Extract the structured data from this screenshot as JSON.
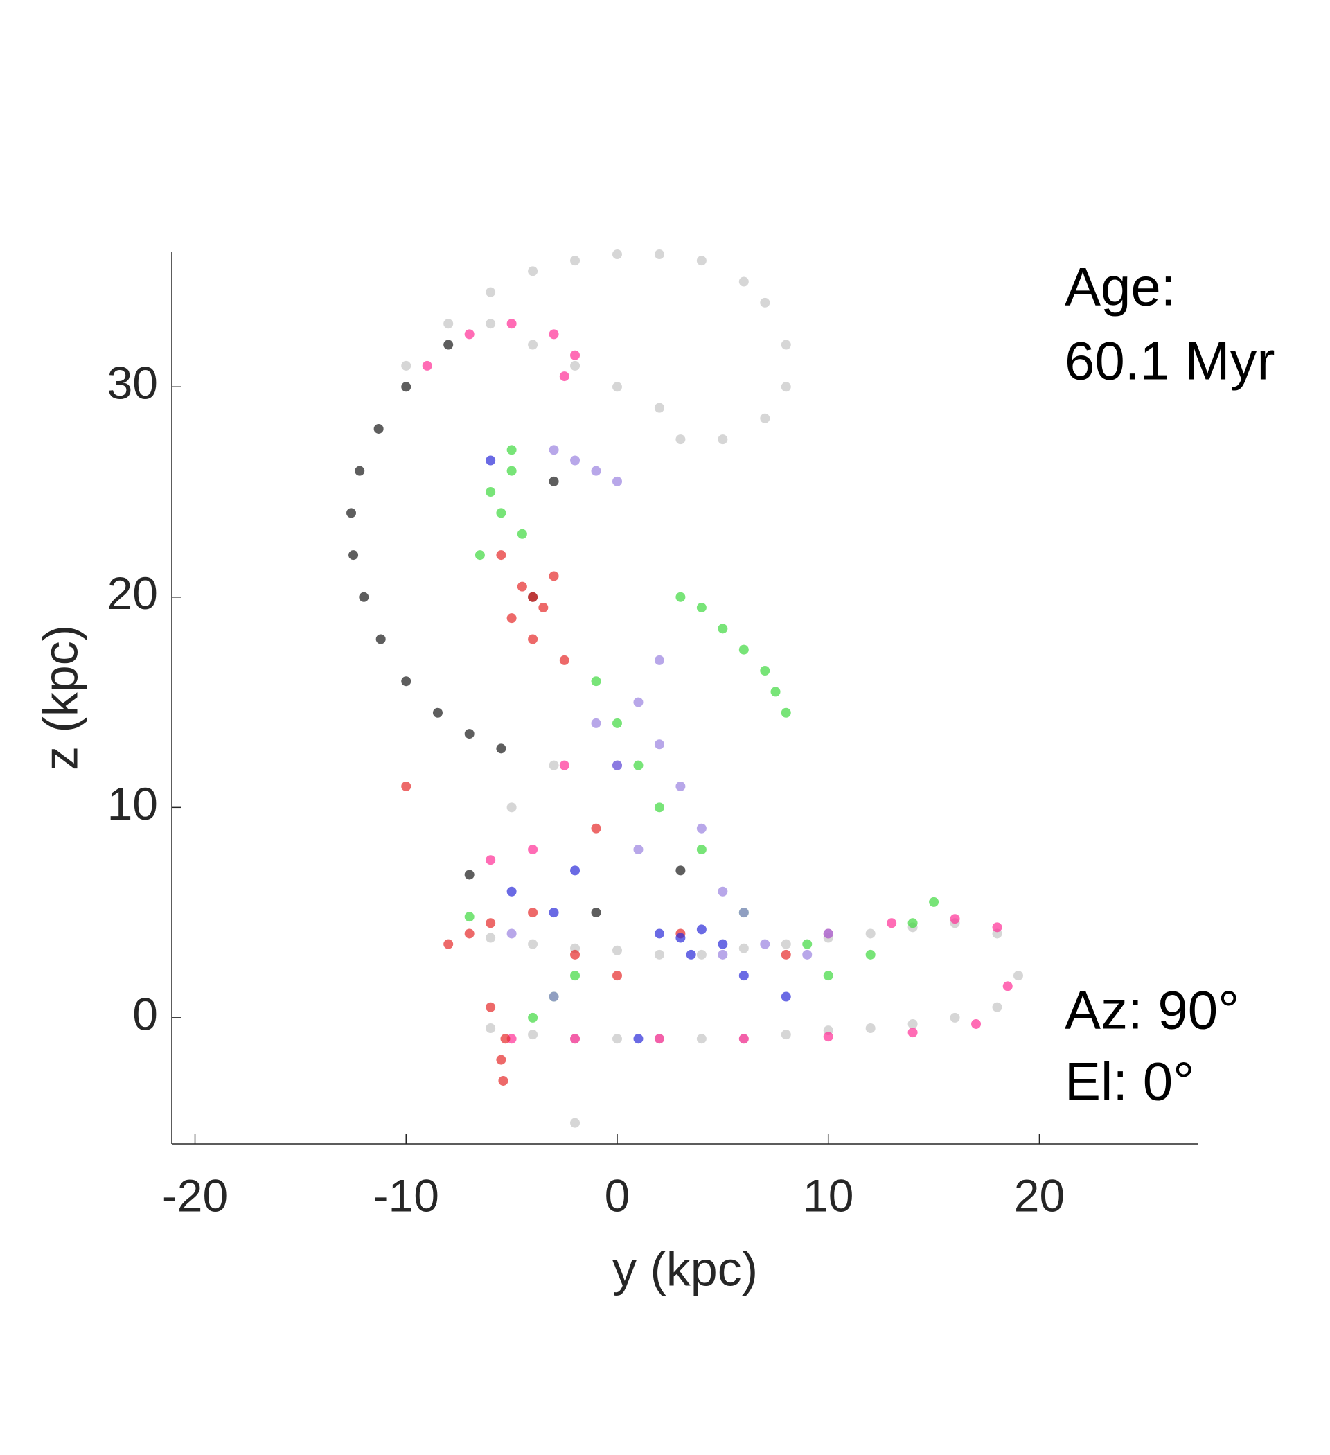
{
  "chart_data": {
    "type": "scatter",
    "xlabel": "y (kpc)",
    "ylabel": "z (kpc)",
    "xlim": [
      -21.1,
      27.5
    ],
    "ylim": [
      -6,
      36.4
    ],
    "xticks": [
      -20,
      -10,
      0,
      10,
      20
    ],
    "yticks": [
      0,
      10,
      20,
      30
    ],
    "grid": false,
    "annotations": [
      "Age:",
      "60.1 Myr",
      "Az: 90°",
      "El: 0°"
    ],
    "series": [
      {
        "color": "#c4c4c4",
        "x": [
          -10,
          -8,
          -6,
          -4,
          -2,
          0,
          2,
          4,
          6,
          7,
          8,
          8,
          7,
          5,
          3,
          2,
          0,
          -2,
          -4,
          -6,
          -6,
          -4,
          -2,
          0,
          2,
          4,
          6,
          8,
          10,
          12,
          14,
          16,
          18,
          19,
          18,
          16,
          14,
          12,
          10,
          8,
          6,
          4,
          2,
          0,
          -2,
          -4,
          -6,
          -3,
          -5,
          -2
        ],
        "values": [
          31,
          33,
          34.5,
          35.5,
          36,
          36.3,
          36.3,
          36,
          35,
          34,
          32,
          30,
          28.5,
          27.5,
          27.5,
          29,
          30,
          31,
          32,
          33,
          -0.5,
          -0.8,
          -1,
          -1,
          -1,
          -1,
          -1,
          -0.8,
          -0.6,
          -0.5,
          -0.3,
          0,
          0.5,
          2,
          4,
          4.5,
          4.3,
          4,
          3.8,
          3.5,
          3.3,
          3,
          3,
          3.2,
          3.3,
          3.5,
          3.8,
          12,
          10,
          -5
        ]
      },
      {
        "color": "#1a1a1a",
        "x": [
          -8,
          -10,
          -11.3,
          -12.2,
          -12.6,
          -12.5,
          -12,
          -11.2,
          -10,
          -8.5,
          -7,
          -5.5,
          -7,
          -3,
          3,
          -1,
          -4
        ],
        "values": [
          32,
          30,
          28,
          26,
          24,
          22,
          20,
          18,
          16,
          14.5,
          13.5,
          12.8,
          6.8,
          25.5,
          7,
          5,
          20
        ]
      },
      {
        "color": "#ff2d95",
        "x": [
          -9,
          -7,
          -5,
          -3,
          -2,
          -2.5,
          -5,
          -2,
          2,
          6,
          10,
          14,
          17,
          18.5,
          18,
          16,
          13,
          10,
          -6,
          -4,
          -2.5
        ],
        "values": [
          31,
          32.5,
          33,
          32.5,
          31.5,
          30.5,
          -1,
          -1,
          -1,
          -1,
          -0.9,
          -0.7,
          -0.3,
          1.5,
          4.3,
          4.7,
          4.5,
          4,
          7.5,
          8,
          12
        ]
      },
      {
        "color": "#e62a2a",
        "x": [
          -4,
          -3.5,
          -4.5,
          -3,
          -5,
          -4,
          -2.5,
          -5.5,
          -7,
          -8,
          -6,
          -4,
          -2,
          0,
          -5.3,
          -5.5,
          -5.4,
          3,
          8,
          -10,
          -1,
          -6
        ],
        "values": [
          20,
          19.5,
          20.5,
          21,
          19,
          18,
          17,
          22,
          4,
          3.5,
          4.5,
          5,
          3,
          2,
          -1,
          -2,
          -3,
          4,
          3,
          11,
          9,
          0.5
        ]
      },
      {
        "color": "#3fd83f",
        "x": [
          -6,
          -5.5,
          -5,
          -4.5,
          -6.5,
          -5,
          3,
          4,
          5,
          6,
          7,
          7.5,
          8,
          -1,
          0,
          1,
          2,
          4,
          6,
          9,
          12,
          14,
          15,
          -2,
          -4,
          -3,
          10,
          -7
        ],
        "values": [
          25,
          24,
          26,
          23,
          22,
          27,
          20,
          19.5,
          18.5,
          17.5,
          16.5,
          15.5,
          14.5,
          16,
          14,
          12,
          10,
          8,
          5,
          3.5,
          3,
          4.5,
          5.5,
          2,
          0,
          1,
          2,
          4.8
        ]
      },
      {
        "color": "#2b2bd8",
        "x": [
          2,
          3,
          4,
          5,
          3.5,
          -5,
          -3,
          -2,
          1,
          6,
          8,
          -6,
          0
        ],
        "values": [
          4,
          3.8,
          4.2,
          3.5,
          3,
          6,
          5,
          7,
          -1,
          2,
          1,
          26.5,
          12
        ]
      },
      {
        "color": "#9a82e0",
        "x": [
          -3,
          -2,
          -1,
          0,
          1,
          2,
          3,
          4,
          5,
          -1,
          0,
          1,
          5,
          7,
          9,
          10,
          -5,
          -3,
          2,
          6
        ],
        "values": [
          27,
          26.5,
          26,
          25.5,
          15,
          13,
          11,
          9,
          6,
          14,
          12,
          8,
          3,
          3.5,
          3,
          4,
          4,
          1,
          17,
          5
        ]
      }
    ]
  }
}
